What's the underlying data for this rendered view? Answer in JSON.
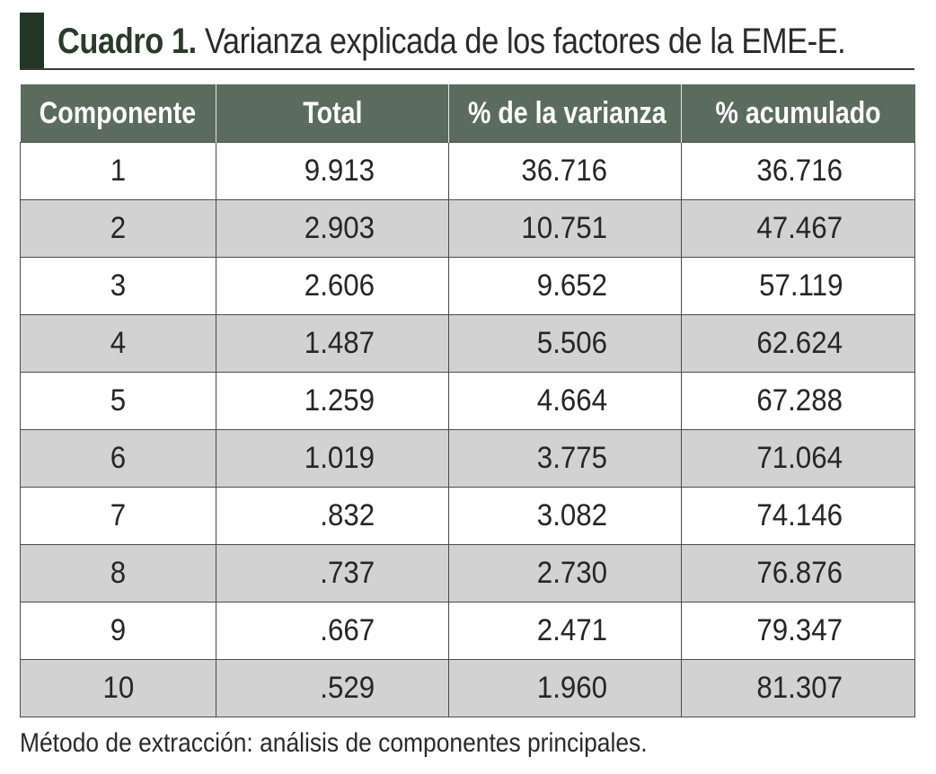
{
  "title": {
    "lead": "Cuadro 1.",
    "rest": " Varianza explicada de los factores de la EME-E."
  },
  "table": {
    "headers": [
      "Componente",
      "Total",
      "% de la varianza",
      "% acumulado"
    ],
    "rows": [
      [
        "1",
        "9.913",
        "36.716",
        "36.716"
      ],
      [
        "2",
        "2.903",
        "10.751",
        "47.467"
      ],
      [
        "3",
        "2.606",
        "9.652",
        "57.119"
      ],
      [
        "4",
        "1.487",
        "5.506",
        "62.624"
      ],
      [
        "5",
        "1.259",
        "4.664",
        "67.288"
      ],
      [
        "6",
        "1.019",
        "3.775",
        "71.064"
      ],
      [
        "7",
        ".832",
        "3.082",
        "74.146"
      ],
      [
        "8",
        ".737",
        "2.730",
        "76.876"
      ],
      [
        "9",
        ".667",
        "2.471",
        "79.347"
      ],
      [
        "10",
        ".529",
        "1.960",
        "81.307"
      ]
    ]
  },
  "note": "Método de extracción: análisis de componentes principales.",
  "colors": {
    "header_bg": "#5b6b5e",
    "shaded_row": "#d2d2d2",
    "title_accent": "#233524"
  }
}
